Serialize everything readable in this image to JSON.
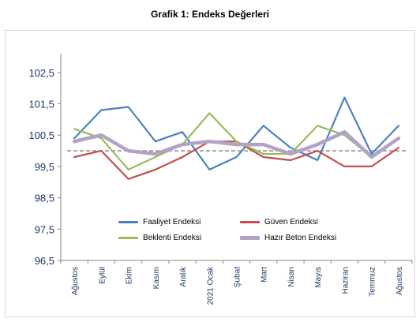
{
  "title": "Grafik 1: Endeks Değerleri",
  "chart_data": {
    "type": "line",
    "title": "Grafik 1: Endeks Değerleri",
    "categories": [
      "Ağustos",
      "Eylül",
      "Ekim",
      "Kasım",
      "Aralık",
      "2021 Ocak",
      "Şubat",
      "Mart",
      "Nisan",
      "Mayıs",
      "Haziran",
      "Temmuz",
      "Ağustos"
    ],
    "ylim": [
      96.5,
      103.1
    ],
    "yticks": [
      "102,5",
      "101,5",
      "100,5",
      "99,5",
      "98,5",
      "97,5",
      "96,5"
    ],
    "ytick_values": [
      102.5,
      101.5,
      100.5,
      99.5,
      98.5,
      97.5,
      96.5
    ],
    "reference_line": 100,
    "grid": false,
    "legend_position": "bottom-center",
    "series": [
      {
        "name": "Faaliyet Endeksi",
        "color": "#4f81bd",
        "values": [
          100.4,
          101.3,
          101.4,
          100.3,
          100.6,
          99.4,
          99.8,
          100.8,
          100.1,
          99.7,
          101.7,
          99.9,
          100.8
        ]
      },
      {
        "name": "Güven Endeksi",
        "color": "#c0504d",
        "values": [
          99.8,
          100.0,
          99.1,
          99.4,
          99.8,
          100.3,
          100.3,
          99.8,
          99.7,
          100.0,
          99.5,
          99.5,
          100.1
        ]
      },
      {
        "name": "Beklenti Endeksi",
        "color": "#9bbb59",
        "values": [
          100.7,
          100.4,
          99.4,
          99.8,
          100.2,
          101.2,
          100.3,
          99.9,
          99.9,
          100.8,
          100.5,
          99.8,
          100.4
        ]
      },
      {
        "name": "Hazır Beton Endeksi",
        "color": "#b3a2c7",
        "values": [
          100.3,
          100.5,
          100.0,
          99.9,
          100.2,
          100.3,
          100.2,
          100.2,
          99.9,
          100.2,
          100.6,
          99.8,
          100.4
        ]
      }
    ]
  }
}
